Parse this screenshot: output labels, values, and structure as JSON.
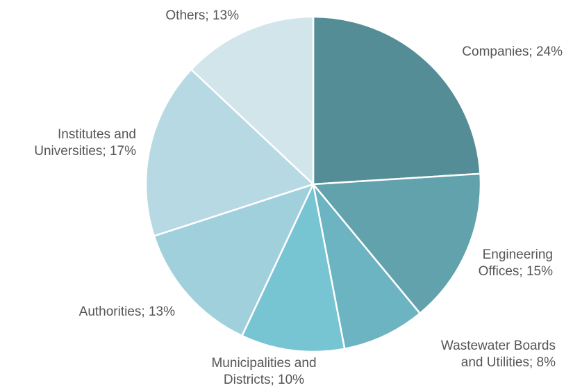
{
  "chart_data": {
    "type": "pie",
    "title": "",
    "slices": [
      {
        "label_lines": [
          "Companies; 24%"
        ],
        "value": 24,
        "color": "#548d96"
      },
      {
        "label_lines": [
          "Engineering",
          "Offices; 15%"
        ],
        "value": 15,
        "color": "#62a2ad"
      },
      {
        "label_lines": [
          "Wastewater Boards",
          "and Utilities; 8%"
        ],
        "value": 8,
        "color": "#6cb4c2"
      },
      {
        "label_lines": [
          "Municipalities and",
          "Districts; 10%"
        ],
        "value": 10,
        "color": "#77c4d3"
      },
      {
        "label_lines": [
          "Authorities; 13%"
        ],
        "value": 13,
        "color": "#9fd0dc"
      },
      {
        "label_lines": [
          "Institutes and",
          "Universities; 17%"
        ],
        "value": 17,
        "color": "#b7d9e3"
      },
      {
        "label_lines": [
          "Others; 13%"
        ],
        "value": 13,
        "color": "#d1e5eb"
      }
    ],
    "legend": "none",
    "data_labels": "outside"
  }
}
